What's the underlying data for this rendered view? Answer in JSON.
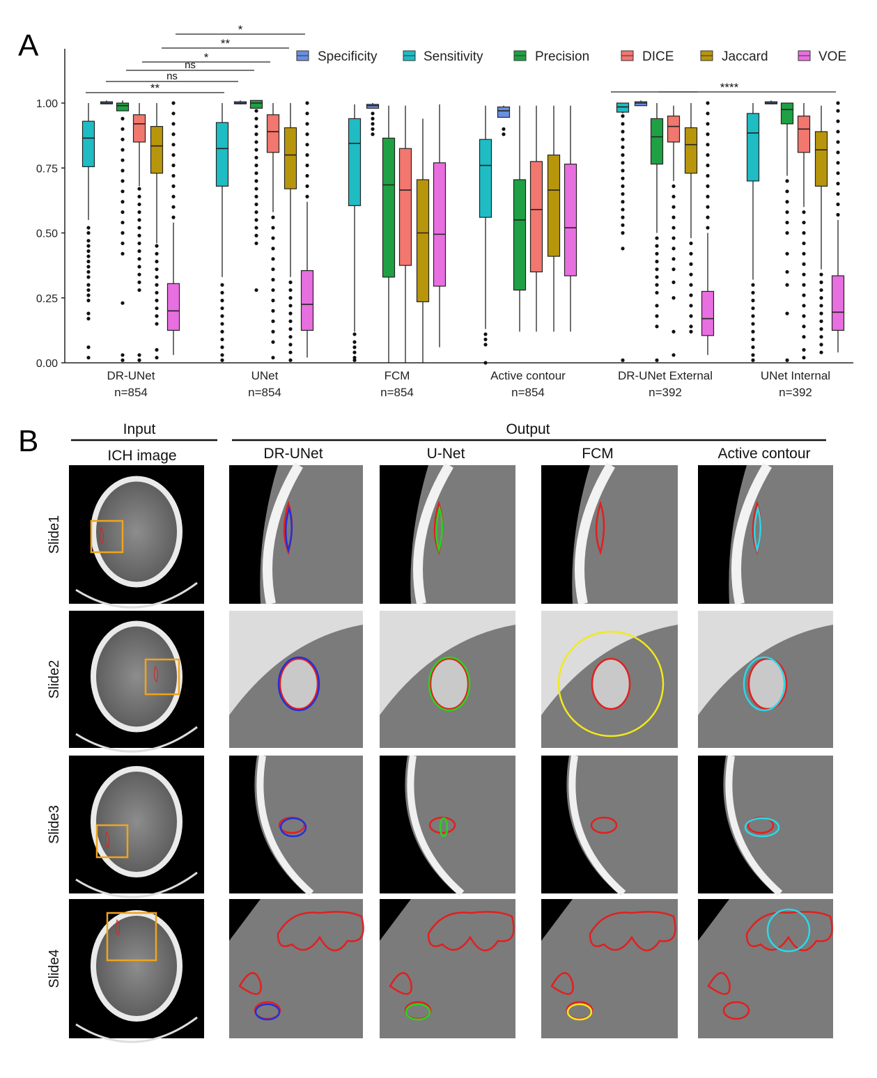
{
  "panel_a_letter": "A",
  "panel_b_letter": "B",
  "chart_data": {
    "type": "box",
    "ylim": [
      0,
      1.0
    ],
    "yticks": [
      "0.00",
      "0.25",
      "0.50",
      "0.75",
      "1.00"
    ],
    "ytick_values": [
      0,
      0.25,
      0.5,
      0.75,
      1.0
    ],
    "metrics": [
      "Specificity",
      "Sensitivity",
      "Precision",
      "DICE",
      "Jaccard",
      "VOE"
    ],
    "colors": {
      "Specificity": "#6a8fe0",
      "Sensitivity": "#1fbcc4",
      "Precision": "#1fa044",
      "DICE": "#f2776f",
      "Jaccard": "#b8960c",
      "VOE": "#e86fe0"
    },
    "groups": [
      {
        "name": "DR-UNet",
        "n": "n=854",
        "boxes": [
          {
            "metric": "Sensitivity",
            "whisker_low": 0.55,
            "q1": 0.755,
            "median": 0.865,
            "q3": 0.93,
            "whisker_high": 1.0,
            "outliers": [
              0.52,
              0.5,
              0.47,
              0.45,
              0.43,
              0.41,
              0.39,
              0.37,
              0.35,
              0.33,
              0.3,
              0.28,
              0.26,
              0.24,
              0.19,
              0.17,
              0.06,
              0.02
            ]
          },
          {
            "metric": "Specificity",
            "whisker_low": 0.995,
            "q1": 1.0,
            "median": 1.0,
            "q3": 1.005,
            "whisker_high": 1.01,
            "outliers": []
          },
          {
            "metric": "Precision",
            "whisker_low": 0.97,
            "q1": 0.97,
            "median": 0.99,
            "q3": 1.0,
            "whisker_high": 1.01,
            "outliers": [
              0.94,
              0.9,
              0.86,
              0.82,
              0.78,
              0.74,
              0.7,
              0.66,
              0.62,
              0.58,
              0.54,
              0.5,
              0.46,
              0.42,
              0.23,
              0.03,
              0.01
            ]
          },
          {
            "metric": "DICE",
            "whisker_low": 0.68,
            "q1": 0.85,
            "median": 0.92,
            "q3": 0.955,
            "whisker_high": 1.0,
            "outliers": [
              0.67,
              0.64,
              0.61,
              0.58,
              0.55,
              0.52,
              0.49,
              0.46,
              0.43,
              0.4,
              0.37,
              0.34,
              0.31,
              0.28,
              0.03,
              0.01
            ]
          },
          {
            "metric": "Jaccard",
            "whisker_low": 0.46,
            "q1": 0.73,
            "median": 0.835,
            "q3": 0.91,
            "whisker_high": 1.0,
            "outliers": [
              0.45,
              0.42,
              0.39,
              0.36,
              0.33,
              0.3,
              0.27,
              0.24,
              0.21,
              0.18,
              0.15,
              0.05,
              0.02
            ]
          },
          {
            "metric": "VOE",
            "whisker_low": 0.03,
            "q1": 0.125,
            "median": 0.2,
            "q3": 0.305,
            "whisker_high": 0.54,
            "outliers": [
              0.56,
              0.6,
              0.64,
              0.68,
              0.72,
              0.76,
              0.8,
              0.84,
              0.88,
              0.92,
              0.96,
              1.0
            ]
          }
        ]
      },
      {
        "name": "UNet",
        "n": "n=854",
        "boxes": [
          {
            "metric": "Sensitivity",
            "whisker_low": 0.33,
            "q1": 0.68,
            "median": 0.825,
            "q3": 0.925,
            "whisker_high": 1.0,
            "outliers": [
              0.3,
              0.27,
              0.24,
              0.21,
              0.18,
              0.15,
              0.12,
              0.09,
              0.06,
              0.03,
              0.01
            ]
          },
          {
            "metric": "Specificity",
            "whisker_low": 0.995,
            "q1": 1.0,
            "median": 1.0,
            "q3": 1.005,
            "whisker_high": 1.01,
            "outliers": []
          },
          {
            "metric": "Precision",
            "whisker_low": 0.98,
            "q1": 0.98,
            "median": 1.0,
            "q3": 1.01,
            "whisker_high": 1.01,
            "outliers": [
              0.97,
              0.94,
              0.91,
              0.88,
              0.85,
              0.82,
              0.79,
              0.76,
              0.73,
              0.7,
              0.67,
              0.64,
              0.61,
              0.58,
              0.55,
              0.52,
              0.49,
              0.46,
              0.28
            ]
          },
          {
            "metric": "DICE",
            "whisker_low": 0.58,
            "q1": 0.81,
            "median": 0.89,
            "q3": 0.955,
            "whisker_high": 1.0,
            "outliers": [
              0.56,
              0.52,
              0.48,
              0.44,
              0.4,
              0.36,
              0.32,
              0.28,
              0.24,
              0.2,
              0.16,
              0.12,
              0.08,
              0.02
            ]
          },
          {
            "metric": "Jaccard",
            "whisker_low": 0.33,
            "q1": 0.67,
            "median": 0.8,
            "q3": 0.905,
            "whisker_high": 1.0,
            "outliers": [
              0.31,
              0.28,
              0.25,
              0.22,
              0.19,
              0.16,
              0.13,
              0.1,
              0.07,
              0.04,
              0.01
            ]
          },
          {
            "metric": "VOE",
            "whisker_low": 0.02,
            "q1": 0.125,
            "median": 0.225,
            "q3": 0.355,
            "whisker_high": 0.62,
            "outliers": [
              0.64,
              0.68,
              0.72,
              0.76,
              0.8,
              0.84,
              0.88,
              0.92,
              0.96,
              1.0
            ]
          }
        ]
      },
      {
        "name": "FCM",
        "n": "n=854",
        "boxes": [
          {
            "metric": "Sensitivity",
            "whisker_low": 0.12,
            "q1": 0.605,
            "median": 0.845,
            "q3": 0.94,
            "whisker_high": 0.995,
            "outliers": [
              0.11,
              0.08,
              0.06,
              0.04,
              0.02,
              0.01
            ]
          },
          {
            "metric": "Specificity",
            "whisker_low": 0.98,
            "q1": 0.98,
            "median": 0.99,
            "q3": 0.995,
            "whisker_high": 1.0,
            "outliers": [
              0.96,
              0.94,
              0.92,
              0.9,
              0.88
            ]
          },
          {
            "metric": "Precision",
            "whisker_low": 0.0,
            "q1": 0.33,
            "median": 0.685,
            "q3": 0.865,
            "whisker_high": 0.99,
            "outliers": []
          },
          {
            "metric": "DICE",
            "whisker_low": 0.0,
            "q1": 0.375,
            "median": 0.665,
            "q3": 0.825,
            "whisker_high": 0.99,
            "outliers": []
          },
          {
            "metric": "Jaccard",
            "whisker_low": 0.0,
            "q1": 0.235,
            "median": 0.5,
            "q3": 0.705,
            "whisker_high": 0.94,
            "outliers": []
          },
          {
            "metric": "VOE",
            "whisker_low": 0.06,
            "q1": 0.295,
            "median": 0.495,
            "q3": 0.77,
            "whisker_high": 0.995,
            "outliers": []
          }
        ]
      },
      {
        "name": "Active contour",
        "n": "n=854",
        "boxes": [
          {
            "metric": "Sensitivity",
            "whisker_low": 0.13,
            "q1": 0.56,
            "median": 0.76,
            "q3": 0.86,
            "whisker_high": 0.99,
            "outliers": [
              0.11,
              0.09,
              0.07,
              0.0
            ]
          },
          {
            "metric": "Specificity",
            "whisker_low": 0.945,
            "q1": 0.945,
            "median": 0.97,
            "q3": 0.985,
            "whisker_high": 0.99,
            "outliers": [
              0.9,
              0.88
            ]
          },
          {
            "metric": "Precision",
            "whisker_low": 0.12,
            "q1": 0.28,
            "median": 0.55,
            "q3": 0.705,
            "whisker_high": 0.99,
            "outliers": []
          },
          {
            "metric": "DICE",
            "whisker_low": 0.12,
            "q1": 0.35,
            "median": 0.59,
            "q3": 0.775,
            "whisker_high": 0.99,
            "outliers": []
          },
          {
            "metric": "Jaccard",
            "whisker_low": 0.12,
            "q1": 0.41,
            "median": 0.665,
            "q3": 0.8,
            "whisker_high": 0.99,
            "outliers": []
          },
          {
            "metric": "VOE",
            "whisker_low": 0.12,
            "q1": 0.335,
            "median": 0.52,
            "q3": 0.765,
            "whisker_high": 0.99,
            "outliers": []
          }
        ]
      },
      {
        "name": "DR-UNet External",
        "n": "n=392",
        "boxes": [
          {
            "metric": "Sensitivity",
            "whisker_low": 0.96,
            "q1": 0.965,
            "median": 0.985,
            "q3": 1.0,
            "whisker_high": 1.0,
            "outliers": [
              0.95,
              0.92,
              0.89,
              0.86,
              0.83,
              0.8,
              0.77,
              0.74,
              0.71,
              0.68,
              0.65,
              0.62,
              0.59,
              0.56,
              0.53,
              0.5,
              0.44,
              0.01
            ]
          },
          {
            "metric": "Specificity",
            "whisker_low": 0.99,
            "q1": 0.99,
            "median": 1.0,
            "q3": 1.005,
            "whisker_high": 1.01,
            "outliers": []
          },
          {
            "metric": "Precision",
            "whisker_low": 0.5,
            "q1": 0.765,
            "median": 0.87,
            "q3": 0.94,
            "whisker_high": 1.0,
            "outliers": [
              0.48,
              0.45,
              0.42,
              0.39,
              0.36,
              0.33,
              0.3,
              0.27,
              0.22,
              0.18,
              0.14,
              0.01
            ]
          },
          {
            "metric": "DICE",
            "whisker_low": 0.7,
            "q1": 0.85,
            "median": 0.91,
            "q3": 0.95,
            "whisker_high": 0.99,
            "outliers": [
              0.68,
              0.64,
              0.6,
              0.56,
              0.52,
              0.48,
              0.44,
              0.4,
              0.36,
              0.31,
              0.25,
              0.12,
              0.03
            ]
          },
          {
            "metric": "Jaccard",
            "whisker_low": 0.48,
            "q1": 0.73,
            "median": 0.84,
            "q3": 0.905,
            "whisker_high": 1.0,
            "outliers": [
              0.46,
              0.42,
              0.38,
              0.34,
              0.3,
              0.26,
              0.22,
              0.18,
              0.14,
              0.12
            ]
          },
          {
            "metric": "VOE",
            "whisker_low": 0.03,
            "q1": 0.105,
            "median": 0.17,
            "q3": 0.275,
            "whisker_high": 0.5,
            "outliers": [
              0.52,
              0.56,
              0.6,
              0.64,
              0.68,
              0.72,
              0.76,
              0.8,
              0.84,
              0.88,
              0.92,
              0.96,
              1.0
            ]
          }
        ]
      },
      {
        "name": "UNet Internal",
        "n": "n=392",
        "boxes": [
          {
            "metric": "Sensitivity",
            "whisker_low": 0.32,
            "q1": 0.7,
            "median": 0.885,
            "q3": 0.96,
            "whisker_high": 1.0,
            "outliers": [
              0.3,
              0.27,
              0.24,
              0.21,
              0.18,
              0.15,
              0.12,
              0.09,
              0.06,
              0.03,
              0.01
            ]
          },
          {
            "metric": "Specificity",
            "whisker_low": 0.995,
            "q1": 1.0,
            "median": 1.0,
            "q3": 1.005,
            "whisker_high": 1.01,
            "outliers": []
          },
          {
            "metric": "Precision",
            "whisker_low": 0.72,
            "q1": 0.92,
            "median": 0.975,
            "q3": 1.0,
            "whisker_high": 1.0,
            "outliers": [
              0.7,
              0.66,
              0.62,
              0.58,
              0.54,
              0.5,
              0.42,
              0.35,
              0.3,
              0.19,
              0.01
            ]
          },
          {
            "metric": "DICE",
            "whisker_low": 0.6,
            "q1": 0.81,
            "median": 0.9,
            "q3": 0.95,
            "whisker_high": 1.0,
            "outliers": [
              0.58,
              0.54,
              0.5,
              0.46,
              0.42,
              0.38,
              0.34,
              0.3,
              0.26,
              0.22,
              0.18,
              0.14,
              0.1,
              0.05,
              0.02
            ]
          },
          {
            "metric": "Jaccard",
            "whisker_low": 0.36,
            "q1": 0.68,
            "median": 0.82,
            "q3": 0.89,
            "whisker_high": 0.99,
            "outliers": [
              0.34,
              0.31,
              0.28,
              0.25,
              0.22,
              0.19,
              0.16,
              0.13,
              0.1,
              0.07,
              0.04
            ]
          },
          {
            "metric": "VOE",
            "whisker_low": 0.04,
            "q1": 0.125,
            "median": 0.195,
            "q3": 0.335,
            "whisker_high": 0.55,
            "outliers": [
              0.57,
              0.61,
              0.65,
              0.69,
              0.73,
              0.77,
              0.81,
              0.85,
              0.89,
              0.93,
              0.97,
              1.0
            ]
          }
        ]
      }
    ],
    "significance": [
      {
        "label": "*",
        "from_group": 0,
        "to_group": 1,
        "level": 4
      },
      {
        "label": "**",
        "from_group": 0,
        "to_group": 1,
        "level": 3
      },
      {
        "label": "*",
        "from_group": 0,
        "to_group": 1,
        "level": 2
      },
      {
        "label": "ns",
        "from_group": 0,
        "to_group": 1,
        "level": 1
      },
      {
        "label": "ns",
        "from_group": 0,
        "to_group": 1,
        "level": 0.5
      },
      {
        "label": "**",
        "from_group": 0,
        "to_group": 1,
        "level": 0
      },
      {
        "label": "****",
        "from_group": 4,
        "to_group": 5,
        "level": 0
      }
    ]
  },
  "panel_b": {
    "input_header": "Input",
    "output_header": "Output",
    "columns": [
      "ICH image",
      "DR-UNet",
      "U-Net",
      "FCM",
      "Active contour"
    ],
    "rows": [
      "Slide1",
      "Slide2",
      "Slide3",
      "Slide4"
    ],
    "contour_colors": {
      "ground_truth": "#e21f1f",
      "DR-UNet": "#2430d8",
      "U-Net": "#27d41f",
      "FCM": "#f2ea1a",
      "Active contour": "#29d9e8",
      "roi_box": "#f0a41c"
    }
  }
}
